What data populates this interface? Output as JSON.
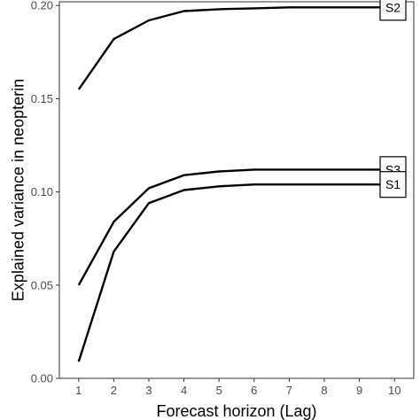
{
  "chart_data": {
    "type": "line",
    "xlabel": "Forecast horizon (Lag)",
    "ylabel": "Explained variance in neopterin",
    "x": [
      1,
      2,
      3,
      4,
      5,
      6,
      7,
      8,
      9,
      10
    ],
    "xlim": [
      0.45,
      10.55
    ],
    "ylim": [
      0,
      0.202
    ],
    "yticks": [
      0.0,
      0.05,
      0.1,
      0.15,
      0.2
    ],
    "ytick_labels": [
      "0.00",
      "0.05",
      "0.10",
      "0.15",
      "0.20"
    ],
    "grid": false,
    "legend": "none",
    "series": [
      {
        "name": "S2",
        "values": [
          0.155,
          0.182,
          0.192,
          0.197,
          0.198,
          0.1985,
          0.199,
          0.199,
          0.199,
          0.199
        ]
      },
      {
        "name": "S3",
        "values": [
          0.05,
          0.084,
          0.102,
          0.109,
          0.111,
          0.112,
          0.112,
          0.112,
          0.112,
          0.112
        ]
      },
      {
        "name": "S1",
        "values": [
          0.009,
          0.068,
          0.094,
          0.101,
          0.103,
          0.104,
          0.104,
          0.104,
          0.104,
          0.104
        ]
      }
    ],
    "line_color": "#000000"
  }
}
